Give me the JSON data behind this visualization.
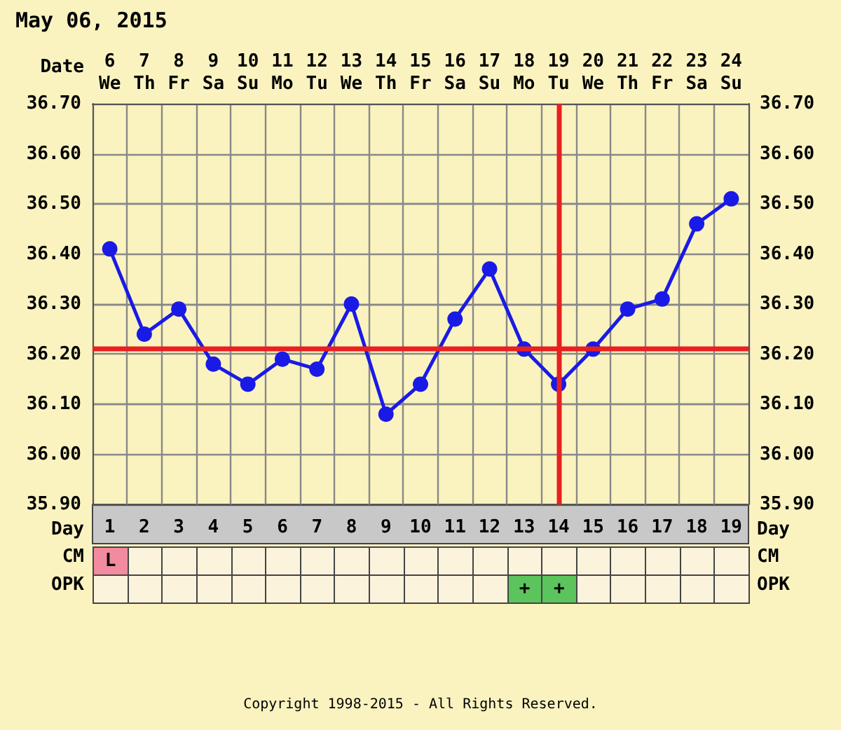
{
  "chart_data": [
    {
      "type": "line",
      "title": "May 06, 2015",
      "xlabel": "Date",
      "x2label": "Day",
      "x": [
        "2015-05-06",
        "2015-05-07",
        "2015-05-08",
        "2015-05-09",
        "2015-05-10",
        "2015-05-11",
        "2015-05-12",
        "2015-05-13",
        "2015-05-14",
        "2015-05-15",
        "2015-05-16",
        "2015-05-17",
        "2015-05-18",
        "2015-05-19",
        "2015-05-20",
        "2015-05-21",
        "2015-05-22",
        "2015-05-23",
        "2015-05-24"
      ],
      "series": [
        {
          "color": "#1a1ae6",
          "values": [
            36.41,
            36.24,
            36.29,
            36.18,
            36.14,
            36.19,
            36.17,
            36.3,
            36.08,
            36.14,
            36.27,
            36.37,
            36.21,
            36.14,
            36.21,
            36.29,
            36.31,
            36.46,
            36.51
          ]
        }
      ],
      "xlim": [
        "2015-05-05T12:00",
        "2015-05-24T12:00"
      ],
      "xticks": [
        {
          "value": "2015-05-06",
          "label": "6\nWe"
        },
        {
          "value": "2015-05-07",
          "label": "7\nTh"
        },
        {
          "value": "2015-05-08",
          "label": "8\nFr"
        },
        {
          "value": "2015-05-09",
          "label": "9\nSa"
        },
        {
          "value": "2015-05-10",
          "label": "10\nSu"
        },
        {
          "value": "2015-05-11",
          "label": "11\nMo"
        },
        {
          "value": "2015-05-12",
          "label": "12\nTu"
        },
        {
          "value": "2015-05-13",
          "label": "13\nWe"
        },
        {
          "value": "2015-05-14",
          "label": "14\nTh"
        },
        {
          "value": "2015-05-15",
          "label": "15\nFr"
        },
        {
          "value": "2015-05-16",
          "label": "16\nSa"
        },
        {
          "value": "2015-05-17",
          "label": "17\nSu"
        },
        {
          "value": "2015-05-18",
          "label": "18\nMo"
        },
        {
          "value": "2015-05-19",
          "label": "19\nTu"
        },
        {
          "value": "2015-05-20",
          "label": "20\nWe"
        },
        {
          "value": "2015-05-21",
          "label": "21\nTh"
        },
        {
          "value": "2015-05-22",
          "label": "22\nFr"
        },
        {
          "value": "2015-05-23",
          "label": "23\nSa"
        },
        {
          "value": "2015-05-24",
          "label": "24\nSu"
        }
      ],
      "x2lim": [
        0.5,
        19.5
      ],
      "x2ticks": [
        1,
        2,
        3,
        4,
        5,
        6,
        7,
        8,
        9,
        10,
        11,
        12,
        13,
        14,
        15,
        16,
        17,
        18,
        19
      ],
      "ylim": [
        35.9,
        36.7
      ],
      "yticks": [
        {
          "value": 35.9,
          "label": "35.90"
        },
        {
          "value": 36.0,
          "label": "36.00"
        },
        {
          "value": 36.1,
          "label": "36.10"
        },
        {
          "value": 36.2,
          "label": "36.20"
        },
        {
          "value": 36.3,
          "label": "36.30"
        },
        {
          "value": 36.4,
          "label": "36.40"
        },
        {
          "value": 36.5,
          "label": "36.50"
        },
        {
          "value": 36.6,
          "label": "36.60"
        },
        {
          "value": 36.7,
          "label": "36.70"
        }
      ],
      "y2lim": [
        35.9,
        36.7
      ],
      "y2ticks": [
        {
          "value": 35.9,
          "label": "35.90"
        },
        {
          "value": 36.0,
          "label": "36.00"
        },
        {
          "value": 36.1,
          "label": "36.10"
        },
        {
          "value": 36.2,
          "label": "36.20"
        },
        {
          "value": 36.3,
          "label": "36.30"
        },
        {
          "value": 36.4,
          "label": "36.40"
        },
        {
          "value": 36.5,
          "label": "36.50"
        },
        {
          "value": 36.6,
          "label": "36.60"
        },
        {
          "value": 36.7,
          "label": "36.70"
        }
      ],
      "ref_lines": [
        {
          "axis": "y",
          "value": 36.21,
          "color": "#e82020"
        },
        {
          "axis": "x",
          "value": "2015-05-19",
          "color": "#e82020"
        }
      ],
      "annotations": [
        "Copyright 1998-2015 - All Rights Reserved."
      ],
      "grid": true,
      "marker": "circle",
      "line_style": "solid"
    },
    {
      "type": "heatmap",
      "categories": [
        null,
        null,
        null,
        null,
        null,
        null,
        null,
        null,
        null,
        null,
        null,
        null,
        null,
        null,
        null,
        null,
        null,
        null,
        null
      ],
      "y_categories": [
        "CM",
        "OPK"
      ],
      "y2_categories": [
        "CM",
        "OPK"
      ],
      "cells": [
        [
          null,
          null,
          null,
          null,
          null,
          null,
          null,
          null,
          null,
          null,
          null,
          null,
          null,
          null,
          null,
          null,
          null,
          null,
          null
        ],
        [
          null,
          null,
          null,
          null,
          null,
          null,
          null,
          null,
          null,
          null,
          null,
          null,
          null,
          null,
          null,
          null,
          null,
          null,
          null
        ]
      ],
      "cell_labels": [
        [
          "L",
          null,
          null,
          null,
          null,
          null,
          null,
          null,
          null,
          null,
          null,
          null,
          null,
          null,
          null,
          null,
          null,
          null,
          null
        ],
        [
          null,
          null,
          null,
          null,
          null,
          null,
          null,
          null,
          null,
          null,
          null,
          null,
          "+",
          "+",
          null,
          null,
          null,
          null,
          null
        ]
      ]
    }
  ]
}
